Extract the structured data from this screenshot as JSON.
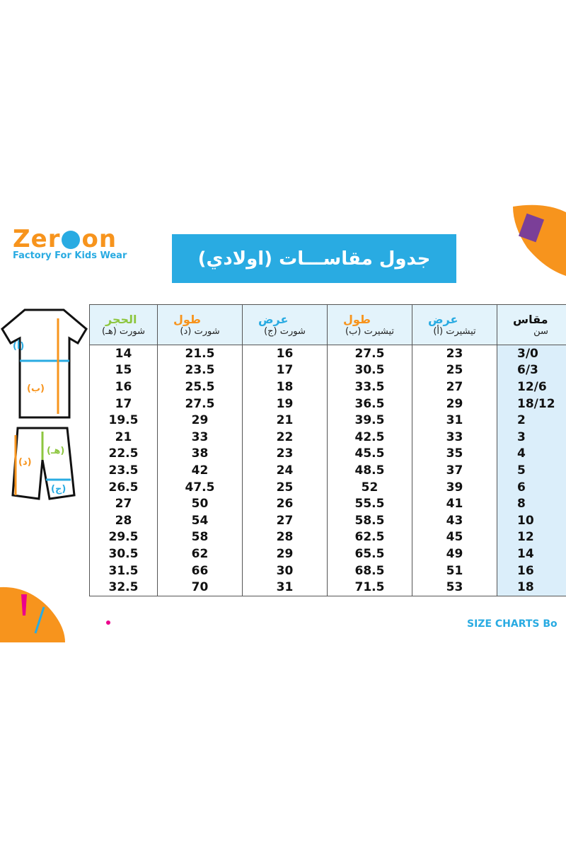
{
  "header": {
    "logo_left": "Zer",
    "logo_right": "on",
    "tagline": "Factory For Kids Wear",
    "title": "جدول مقاســـات (اولادي)"
  },
  "illustration": {
    "chest": "(أ)",
    "length": "(ب)",
    "hip": "(هـ)",
    "short_length": "(د)",
    "short_width": "(ج)"
  },
  "table": {
    "columns": [
      {
        "top": "الحجر",
        "sub": "شورت (هـ)"
      },
      {
        "top": "طول",
        "sub": "شورت (د)"
      },
      {
        "top": "عرض",
        "sub": "شورت (ج)"
      },
      {
        "top": "طول",
        "sub": "تيشيرت (ب)"
      },
      {
        "top": "عرض",
        "sub": "تيشيرت (أ)"
      },
      {
        "top": "مقاس",
        "sub": "سن"
      }
    ],
    "rows": [
      [
        14,
        21.5,
        16,
        27.5,
        23,
        "3/0"
      ],
      [
        15,
        23.5,
        17,
        30.5,
        25,
        "6/3"
      ],
      [
        16,
        25.5,
        18,
        33.5,
        27,
        "12/6"
      ],
      [
        17,
        27.5,
        19,
        36.5,
        29,
        "18/12"
      ],
      [
        19.5,
        29,
        21,
        39.5,
        31,
        2
      ],
      [
        21,
        33,
        22,
        42.5,
        33,
        3
      ],
      [
        22.5,
        38,
        23,
        45.5,
        35,
        4
      ],
      [
        23.5,
        42,
        24,
        48.5,
        37,
        5
      ],
      [
        26.5,
        47.5,
        25,
        52,
        39,
        6
      ],
      [
        27,
        50,
        26,
        55.5,
        41,
        8
      ],
      [
        28,
        54,
        27,
        58.5,
        43,
        10
      ],
      [
        29.5,
        58,
        28,
        62.5,
        45,
        12
      ],
      [
        30.5,
        62,
        29,
        65.5,
        49,
        14
      ],
      [
        31.5,
        66,
        30,
        68.5,
        51,
        16
      ],
      [
        32.5,
        70,
        31,
        71.5,
        53,
        18
      ]
    ]
  },
  "footer": "SIZE CHARTS Bo"
}
